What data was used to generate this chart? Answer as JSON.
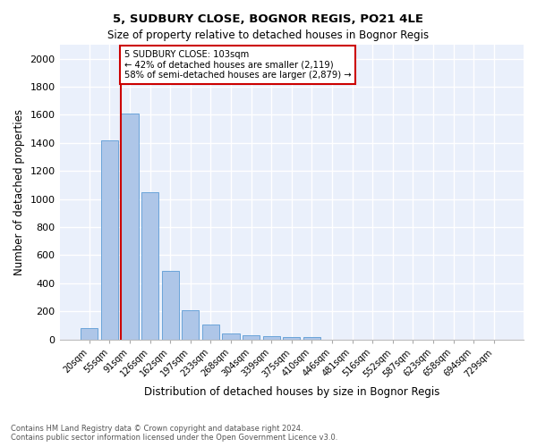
{
  "title1": "5, SUDBURY CLOSE, BOGNOR REGIS, PO21 4LE",
  "title2": "Size of property relative to detached houses in Bognor Regis",
  "xlabel": "Distribution of detached houses by size in Bognor Regis",
  "ylabel": "Number of detached properties",
  "footnote1": "Contains HM Land Registry data © Crown copyright and database right 2024.",
  "footnote2": "Contains public sector information licensed under the Open Government Licence v3.0.",
  "bar_labels": [
    "20sqm",
    "55sqm",
    "91sqm",
    "126sqm",
    "162sqm",
    "197sqm",
    "233sqm",
    "268sqm",
    "304sqm",
    "339sqm",
    "375sqm",
    "410sqm",
    "446sqm",
    "481sqm",
    "516sqm",
    "552sqm",
    "587sqm",
    "623sqm",
    "658sqm",
    "694sqm",
    "729sqm"
  ],
  "bar_values": [
    80,
    1420,
    1610,
    1050,
    490,
    205,
    105,
    40,
    28,
    22,
    18,
    15,
    0,
    0,
    0,
    0,
    0,
    0,
    0,
    0,
    0
  ],
  "bar_color": "#aec6e8",
  "bar_edge_color": "#5b9bd5",
  "bg_color": "#eaf0fb",
  "grid_color": "#ffffff",
  "property_line_color": "#cc0000",
  "annotation_text": "5 SUDBURY CLOSE: 103sqm\n← 42% of detached houses are smaller (2,119)\n58% of semi-detached houses are larger (2,879) →",
  "annotation_box_color": "#ffffff",
  "annotation_box_edge": "#cc0000",
  "ylim": [
    0,
    2100
  ],
  "yticks": [
    0,
    200,
    400,
    600,
    800,
    1000,
    1200,
    1400,
    1600,
    1800,
    2000
  ]
}
